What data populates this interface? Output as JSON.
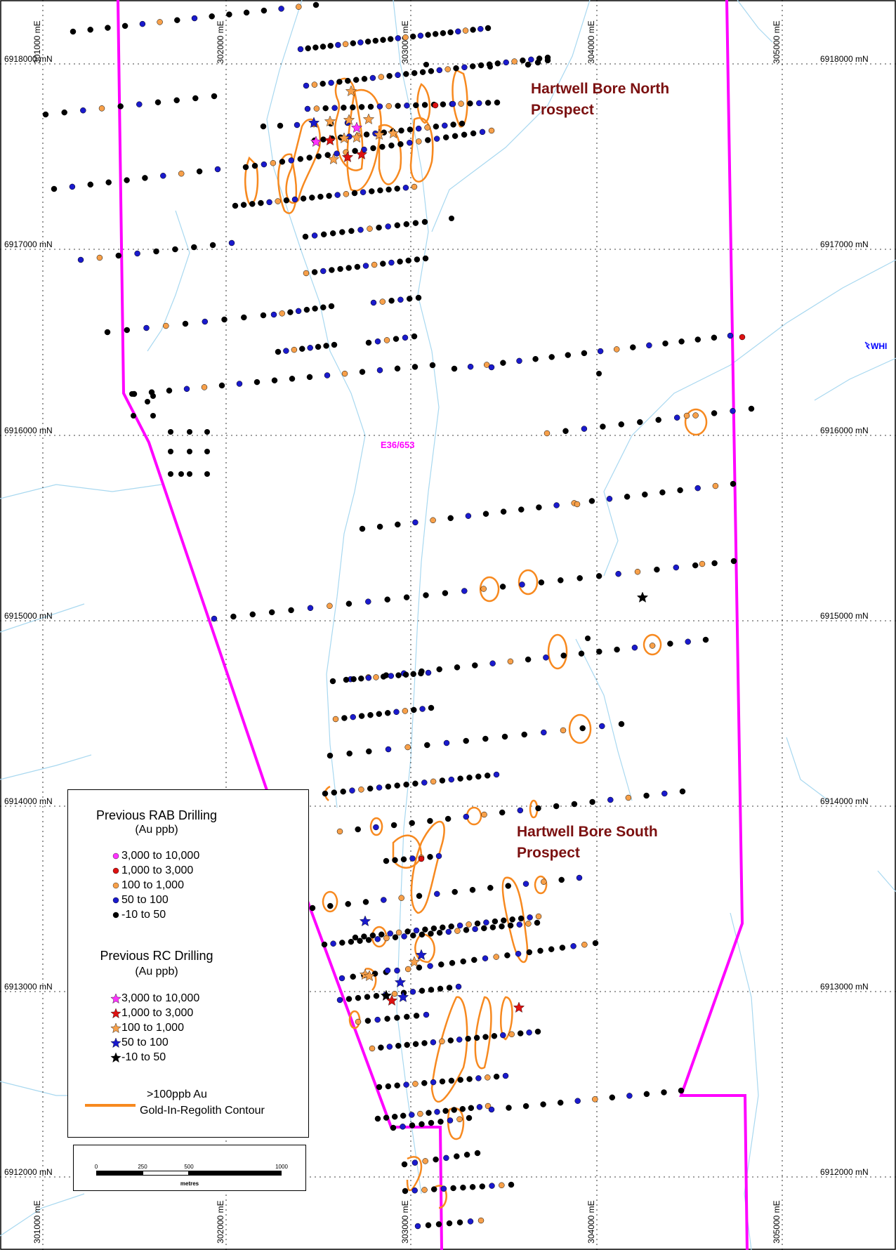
{
  "map": {
    "title": "",
    "easting_labels": [
      "301000 mE",
      "302000 mE",
      "303000 mE",
      "304000 mE",
      "305000 mE"
    ],
    "northing_labels": [
      "6918000 mN",
      "6917000 mN",
      "6916000 mN",
      "6915000 mN",
      "6914000 mN",
      "6913000 mN",
      "6912000 mN"
    ],
    "prospects": {
      "north_line1": "Hartwell Bore North",
      "north_line2": "Prospect",
      "south_line1": "Hartwell Bore South",
      "south_line2": "Prospect"
    },
    "tenement_label": "E36/653",
    "edge_label": "WHI",
    "colors": {
      "tenement_boundary": "#ff00ff",
      "drainage": "#a8d8f0",
      "contour": "#f7891f",
      "grid": "#000000",
      "prospect_text": "#7b1010"
    }
  },
  "legend": {
    "rab_title": "Previous RAB Drilling",
    "rab_units": "(Au ppb)",
    "rab_classes": [
      {
        "label": "3,000 to 10,000",
        "color": "#ff33ff",
        "icon": "circle-icon"
      },
      {
        "label": "1,000 to   3,000",
        "color": "#dd1111",
        "icon": "circle-icon"
      },
      {
        "label": "100 to   1,000",
        "color": "#f7a04a",
        "icon": "circle-icon"
      },
      {
        "label": "50 to      100",
        "color": "#1a1acc",
        "icon": "circle-icon"
      },
      {
        "label": "-10 to        50",
        "color": "#000000",
        "icon": "circle-icon"
      }
    ],
    "rc_title": "Previous RC Drilling",
    "rc_units": "(Au ppb)",
    "rc_classes": [
      {
        "label": "3,000 to 10,000",
        "color": "#ff33ff",
        "icon": "star-icon"
      },
      {
        "label": "1,000 to   3,000",
        "color": "#dd1111",
        "icon": "star-icon"
      },
      {
        "label": "100 to   1,000",
        "color": "#f7a04a",
        "icon": "star-icon"
      },
      {
        "label": "50 to      100",
        "color": "#1a1acc",
        "icon": "star-icon"
      },
      {
        "label": "-10 to        50",
        "color": "#000000",
        "icon": "star-icon"
      }
    ],
    "contour_line1": ">100ppb Au",
    "contour_line2": "Gold-In-Regolith Contour"
  },
  "scale_bar": {
    "ticks": [
      "0",
      "250",
      "500",
      "1000"
    ],
    "units": "metres"
  }
}
